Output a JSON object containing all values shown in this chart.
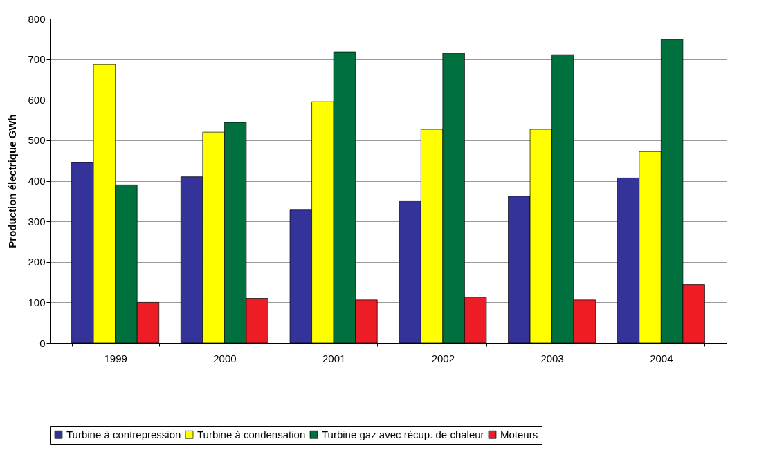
{
  "chart_data": {
    "type": "bar",
    "ylabel": "Production électrique GWh",
    "categories": [
      "1999",
      "2000",
      "2001",
      "2002",
      "2003",
      "2004"
    ],
    "series": [
      {
        "name": "Turbine à contrepression",
        "color": "#333399",
        "values": [
          445,
          410,
          328,
          349,
          362,
          407
        ]
      },
      {
        "name": "Turbine à condensation",
        "color": "#ffff00",
        "values": [
          687,
          520,
          595,
          527,
          527,
          472
        ]
      },
      {
        "name": "Turbine gaz avec récup. de chaleur",
        "color": "#00703f",
        "values": [
          390,
          544,
          718,
          715,
          711,
          749
        ]
      },
      {
        "name": "Moteurs",
        "color": "#ee1c25",
        "values": [
          100,
          110,
          106,
          113,
          106,
          144
        ]
      }
    ],
    "ylim": [
      0,
      800
    ],
    "yticks": [
      0,
      100,
      200,
      300,
      400,
      500,
      600,
      700,
      800
    ],
    "grid": "y",
    "legend": "bottom"
  }
}
